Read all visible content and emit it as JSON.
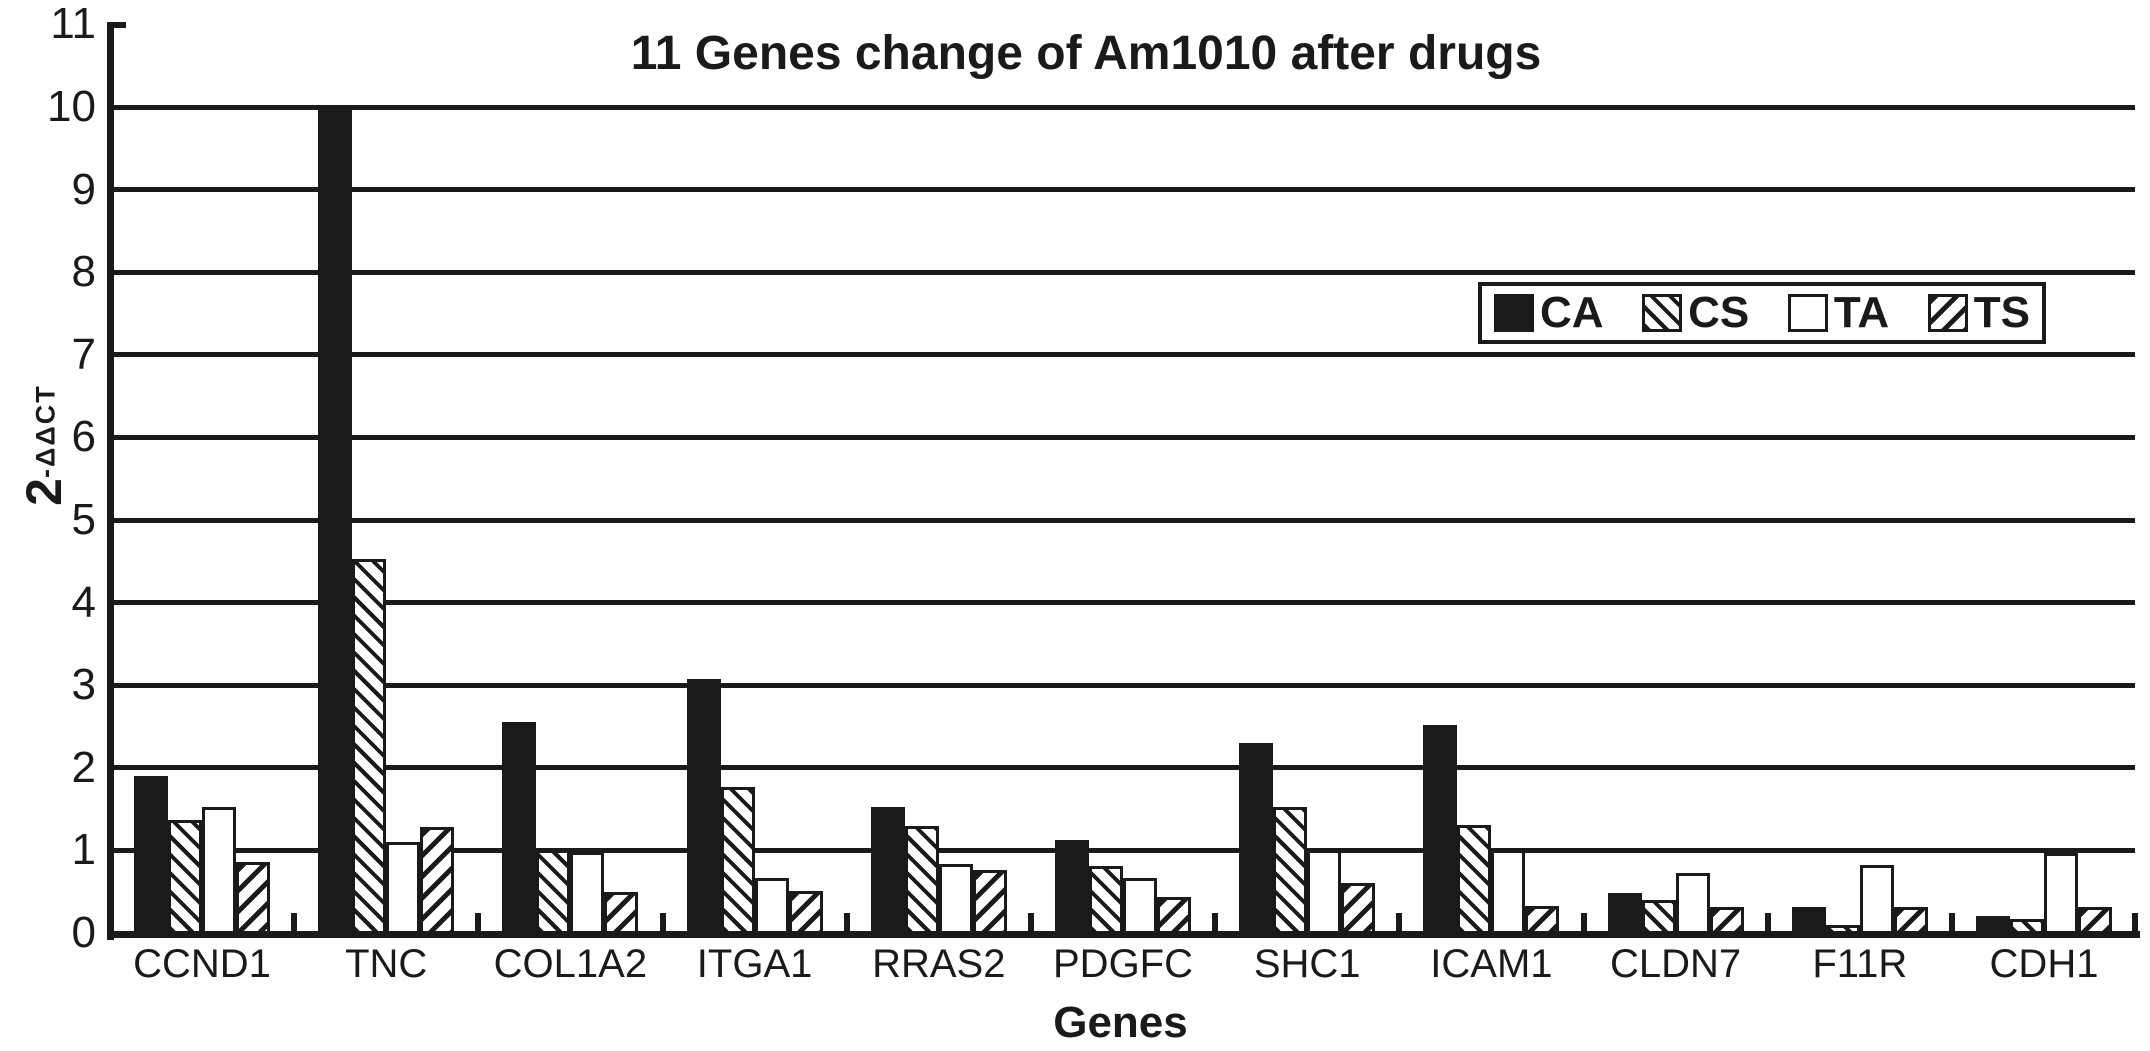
{
  "colors": {
    "ink": "#1a1a1a",
    "background": "#ffffff"
  },
  "chart_data": {
    "type": "bar",
    "title": "11 Genes change of Am1010 after drugs",
    "xlabel": "Genes",
    "ylabel_base": "2",
    "ylabel_exponent": "-ΔΔCT",
    "ylim": [
      0,
      11
    ],
    "yticks": [
      0,
      1,
      2,
      3,
      4,
      5,
      6,
      7,
      8,
      9,
      10,
      11
    ],
    "grid": "horizontal-lines-1-to-10",
    "legend_position": "top-right-inside-plot",
    "categories": [
      "CCND1",
      "TNC",
      "COL1A2",
      "ITGA1",
      "RRAS2",
      "PDGFC",
      "SHC1",
      "ICAM1",
      "CLDN7",
      "F11R",
      "CDH1"
    ],
    "series": [
      {
        "name": "CA",
        "pattern": "solid-black",
        "values": [
          1.9,
          10.0,
          2.55,
          3.08,
          1.52,
          1.12,
          2.3,
          2.52,
          0.48,
          0.32,
          0.21
        ]
      },
      {
        "name": "CS",
        "pattern": "diagonal-hatch-down",
        "values": [
          1.37,
          4.53,
          1.0,
          1.77,
          1.3,
          0.81,
          1.53,
          1.31,
          0.4,
          0.1,
          0.17
        ]
      },
      {
        "name": "TA",
        "pattern": "white",
        "values": [
          1.53,
          1.1,
          0.98,
          0.67,
          0.84,
          0.66,
          1.0,
          1.0,
          0.73,
          0.82,
          0.97
        ]
      },
      {
        "name": "TS",
        "pattern": "diagonal-hatch-up",
        "values": [
          0.86,
          1.28,
          0.5,
          0.51,
          0.76,
          0.43,
          0.6,
          0.33,
          0.32,
          0.32,
          0.32
        ]
      }
    ]
  }
}
